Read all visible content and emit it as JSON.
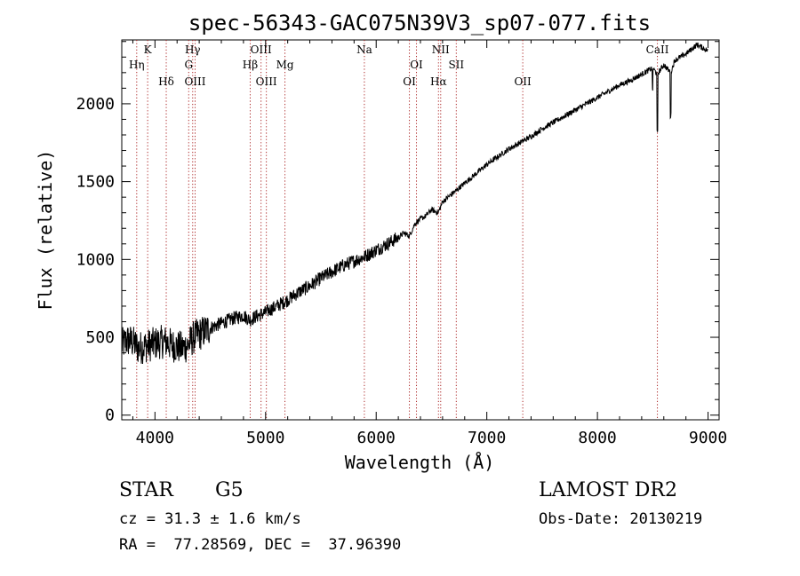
{
  "chart_data": {
    "type": "line",
    "title": "spec-56343-GAC075N39V3_sp07-077.fits",
    "xlabel": "Wavelength (Å)",
    "ylabel": "Flux (relative)",
    "xlim": [
      3700,
      9100
    ],
    "ylim": [
      -30,
      2410
    ],
    "xticks": [
      4000,
      5000,
      6000,
      7000,
      8000,
      9000
    ],
    "yticks": [
      0,
      500,
      1000,
      1500,
      2000
    ],
    "grid": false,
    "series": [
      {
        "color": "#000000",
        "x": [
          3700,
          3750,
          3800,
          3850,
          3900,
          3950,
          4000,
          4050,
          4100,
          4150,
          4200,
          4250,
          4300,
          4350,
          4400,
          4450,
          4500,
          4600,
          4700,
          4800,
          4860,
          4900,
          5000,
          5100,
          5200,
          5300,
          5400,
          5500,
          5600,
          5700,
          5800,
          5900,
          6000,
          6100,
          6200,
          6250,
          6300,
          6350,
          6400,
          6450,
          6500,
          6560,
          6600,
          6700,
          6800,
          6900,
          7000,
          7100,
          7200,
          7300,
          7400,
          7500,
          7600,
          7700,
          7800,
          7900,
          8000,
          8100,
          8200,
          8300,
          8400,
          8450,
          8500,
          8542,
          8600,
          8662,
          8700,
          8800,
          8850,
          8900,
          8950,
          9000
        ],
        "y": [
          450,
          480,
          470,
          430,
          440,
          450,
          460,
          470,
          470,
          450,
          440,
          430,
          450,
          500,
          520,
          540,
          560,
          590,
          620,
          640,
          610,
          630,
          660,
          700,
          740,
          790,
          830,
          880,
          920,
          960,
          990,
          1020,
          1060,
          1100,
          1140,
          1170,
          1150,
          1230,
          1260,
          1280,
          1320,
          1300,
          1370,
          1430,
          1490,
          1550,
          1610,
          1660,
          1710,
          1750,
          1790,
          1840,
          1880,
          1920,
          1960,
          2000,
          2040,
          2080,
          2120,
          2150,
          2190,
          2210,
          2230,
          2190,
          2250,
          2200,
          2280,
          2320,
          2350,
          2380,
          2360,
          2340
        ]
      }
    ],
    "lines": [
      {
        "label": "Hη",
        "x": 3835,
        "row": 2
      },
      {
        "label": "K",
        "x": 3934,
        "row": 1
      },
      {
        "label": "Hδ",
        "x": 4102,
        "row": 3
      },
      {
        "label": "Hγ",
        "x": 4341,
        "row": 1
      },
      {
        "label": "G",
        "x": 4305,
        "row": 2
      },
      {
        "label": "OIII",
        "x": 4363,
        "row": 3
      },
      {
        "label": "OIII",
        "x": 4959,
        "row": 1
      },
      {
        "label": "Hβ",
        "x": 4861,
        "row": 2
      },
      {
        "label": "OIII",
        "x": 5007,
        "row": 3
      },
      {
        "label": "Mg",
        "x": 5175,
        "row": 2
      },
      {
        "label": "Na",
        "x": 5893,
        "row": 1
      },
      {
        "label": "OI",
        "x": 6300,
        "row": 3
      },
      {
        "label": "OI",
        "x": 6364,
        "row": 2
      },
      {
        "label": "NII",
        "x": 6583,
        "row": 1
      },
      {
        "label": "Hα",
        "x": 6563,
        "row": 3
      },
      {
        "label": "SII",
        "x": 6724,
        "row": 2
      },
      {
        "label": "OII",
        "x": 7325,
        "row": 3
      },
      {
        "label": "CaII",
        "x": 8542,
        "row": 1
      }
    ]
  },
  "info": {
    "objtype": "STAR",
    "subclass": "G5",
    "survey": "LAMOST DR2",
    "cz": "cz = 31.3 ± 1.6 km/s",
    "obsdate": "Obs-Date: 20130219",
    "radec": "RA =  77.28569, DEC =  37.96390"
  }
}
